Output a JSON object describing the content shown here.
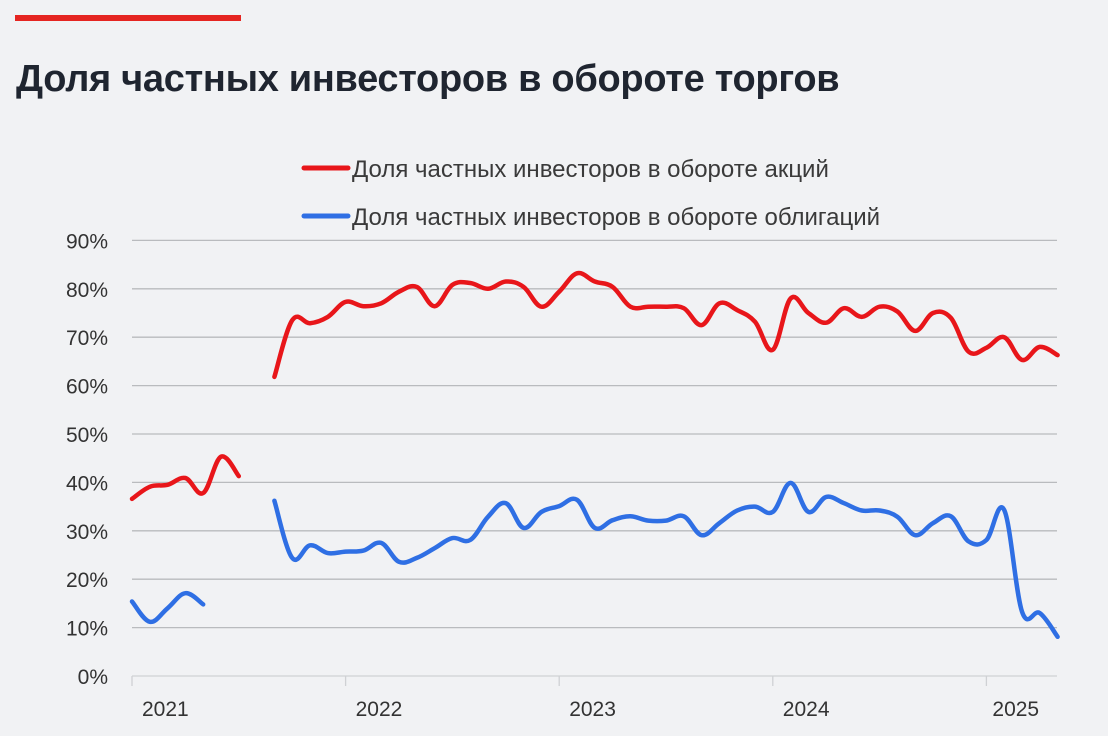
{
  "title": "Доля частных инвесторов в обороте торгов",
  "colors": {
    "accent": "#e52521",
    "stocks": "#e8161a",
    "bonds": "#2f6fe4",
    "grid": "#b9bbbe",
    "background": "#f1f2f4"
  },
  "chart_data": {
    "type": "line",
    "title": "Доля частных инвесторов в обороте торгов",
    "xlabel": "",
    "ylabel": "",
    "ylim": [
      0,
      90
    ],
    "yticks": [
      "0%",
      "10%",
      "20%",
      "30%",
      "40%",
      "50%",
      "60%",
      "70%",
      "80%",
      "90%"
    ],
    "xticks": [
      "2021",
      "2022",
      "2023",
      "2024",
      "2025"
    ],
    "grid": "horizontal",
    "legend": "top",
    "x": [
      "2021-01",
      "2021-02",
      "2021-03",
      "2021-04",
      "2021-05",
      "2021-06",
      "2021-07",
      "2021-08",
      "2021-09",
      "2021-10",
      "2021-11",
      "2021-12",
      "2022-01",
      "2022-02",
      "2022-03",
      "2022-04",
      "2022-05",
      "2022-06",
      "2022-07",
      "2022-08",
      "2022-09",
      "2022-10",
      "2022-11",
      "2022-12",
      "2023-01",
      "2023-02",
      "2023-03",
      "2023-04",
      "2023-05",
      "2023-06",
      "2023-07",
      "2023-08",
      "2023-09",
      "2023-10",
      "2023-11",
      "2023-12",
      "2024-01",
      "2024-02",
      "2024-03",
      "2024-04",
      "2024-05",
      "2024-06",
      "2024-07",
      "2024-08",
      "2024-09",
      "2024-10",
      "2024-11",
      "2024-12",
      "2025-01",
      "2025-02",
      "2025-03",
      "2025-04",
      "2025-05"
    ],
    "series": [
      {
        "name": "Доля частных инвесторов в обороте акций",
        "color": "#e8161a",
        "values": [
          36.6,
          39.1,
          39.5,
          40.9,
          37.8,
          45.3,
          41.3,
          null,
          61.8,
          73.5,
          72.9,
          74.2,
          77.3,
          76.4,
          77.0,
          79.4,
          80.4,
          76.4,
          80.8,
          81.2,
          80.0,
          81.5,
          80.4,
          76.3,
          79.4,
          83.2,
          81.5,
          80.4,
          76.3,
          76.3,
          76.3,
          76.0,
          72.5,
          77.0,
          75.6,
          73.2,
          67.4,
          78.0,
          75.0,
          73.0,
          76.0,
          74.2,
          76.3,
          75.3,
          71.3,
          75.0,
          74.0,
          67.0,
          67.8,
          70.0,
          65.3,
          68.0,
          66.3
        ]
      },
      {
        "name": "Доля частных инвесторов в обороте облигаций",
        "color": "#2f6fe4",
        "values": [
          15.4,
          11.2,
          14.0,
          17.1,
          14.8,
          null,
          null,
          null,
          36.2,
          24.4,
          27.0,
          25.4,
          25.7,
          25.9,
          27.5,
          23.6,
          24.4,
          26.4,
          28.5,
          28.1,
          32.9,
          35.7,
          30.6,
          33.9,
          35.1,
          36.4,
          30.6,
          32.2,
          33.0,
          32.1,
          32.1,
          33.0,
          29.1,
          31.6,
          34.2,
          35.0,
          33.9,
          39.9,
          33.9,
          37.0,
          35.7,
          34.2,
          34.2,
          32.9,
          29.1,
          31.6,
          33.0,
          27.8,
          28.1,
          34.3,
          13.3,
          13.0,
          8.1
        ]
      }
    ]
  }
}
